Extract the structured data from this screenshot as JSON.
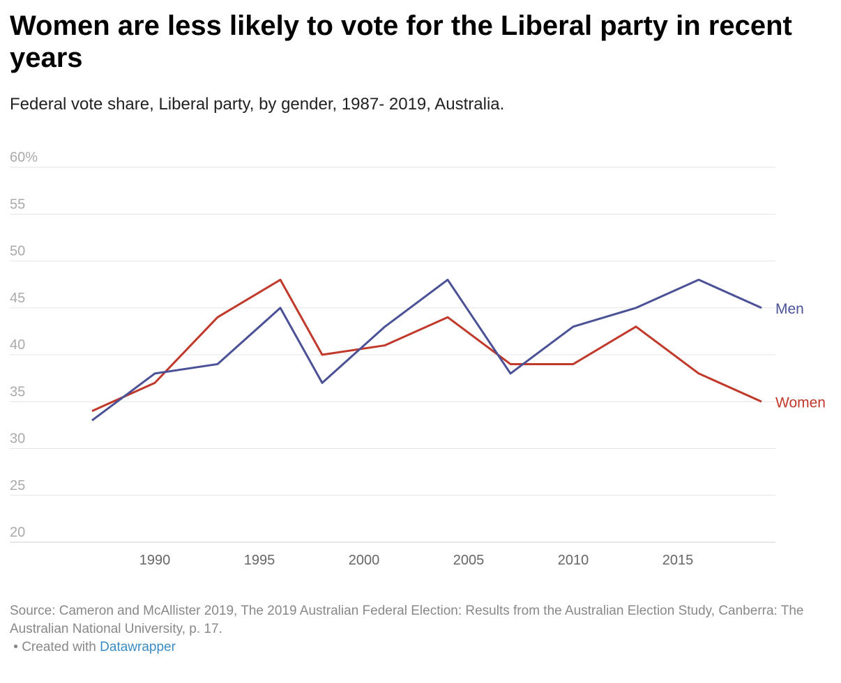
{
  "title": "Women are less likely to vote for the Liberal party in recent years",
  "subtitle": "Federal vote share, Liberal party, by gender, 1987- 2019, Australia.",
  "source": "Source: Cameron and McAllister 2019, The 2019 Australian Federal Election: Results from the Australian Election Study, Canberra: The Australian National University, p. 17.",
  "credit_prefix": "• Created with",
  "credit_link": "Datawrapper",
  "chart_data": {
    "type": "line",
    "x": [
      1987,
      1990,
      1993,
      1996,
      1998,
      2001,
      2004,
      2007,
      2010,
      2013,
      2016,
      2019
    ],
    "series": [
      {
        "name": "Men",
        "color": "#4b5196",
        "values": [
          33,
          38,
          39,
          45,
          37,
          43,
          48,
          38,
          43,
          45,
          48,
          45
        ]
      },
      {
        "name": "Women",
        "color": "#c0392b",
        "values": [
          34,
          37,
          44,
          48,
          40,
          41,
          44,
          39,
          39,
          43,
          38,
          35
        ]
      }
    ],
    "ylim": [
      20,
      60
    ],
    "y_ticks": [
      "20",
      "25",
      "30",
      "35",
      "40",
      "45",
      "50",
      "55",
      "60%"
    ],
    "x_ticks": [
      "1990",
      "1995",
      "2000",
      "2005",
      "2010",
      "2015"
    ],
    "grid": true,
    "legend": "direct labels at line ends"
  }
}
